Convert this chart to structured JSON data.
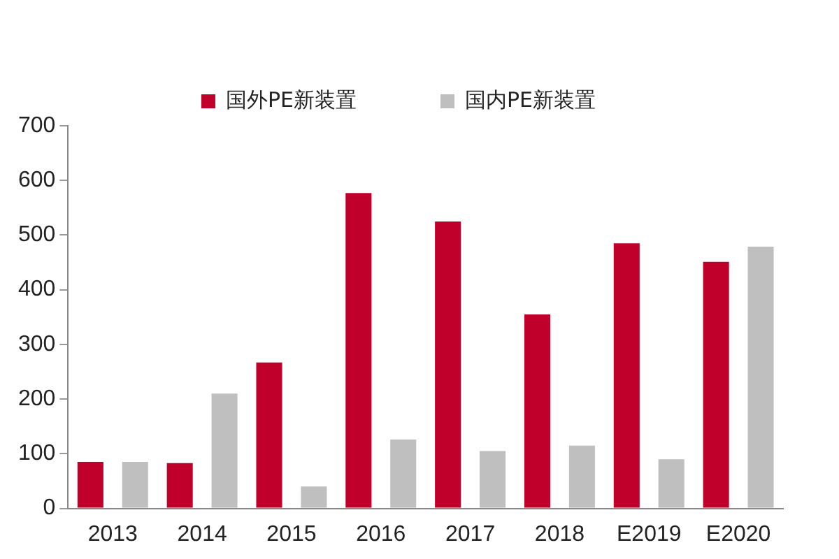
{
  "chart_data": {
    "type": "bar",
    "categories": [
      "2013",
      "2014",
      "2015",
      "2016",
      "2017",
      "2018",
      "E2019",
      "E2020"
    ],
    "series": [
      {
        "name": "国外PE新装置",
        "color": "#c0002a",
        "values": [
          85,
          83,
          267,
          577,
          525,
          355,
          485,
          451
        ]
      },
      {
        "name": "国内PE新装置",
        "color": "#bfbfbf",
        "values": [
          85,
          210,
          40,
          126,
          105,
          115,
          90,
          479
        ]
      }
    ],
    "ylim": [
      0,
      700
    ],
    "yticks": [
      0,
      100,
      200,
      300,
      400,
      500,
      600,
      700
    ],
    "grid": false,
    "legend": "top"
  }
}
